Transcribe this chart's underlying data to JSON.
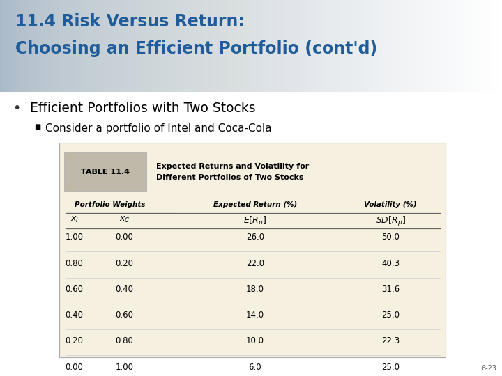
{
  "title_line1": "11.4 Risk Versus Return:",
  "title_line2": "Choosing an Efficient Portfolio (cont'd)",
  "title_color": "#1F5C99",
  "bullet1": "Efficient Portfolios with Two Stocks",
  "bullet2": "Consider a portfolio of Intel and Coca-Cola",
  "table_label": "TABLE 11.4",
  "table_title_line1": "Expected Returns and Volatility for",
  "table_title_line2": "Different Portfolios of Two Stocks",
  "col_header1": "Portfolio Weights",
  "col_header2": "Expected Return (%)",
  "col_header3": "Volatility (%)",
  "table_data": [
    [
      1.0,
      0.0,
      26.0,
      50.0
    ],
    [
      0.8,
      0.2,
      22.0,
      40.3
    ],
    [
      0.6,
      0.4,
      18.0,
      31.6
    ],
    [
      0.4,
      0.6,
      14.0,
      25.0
    ],
    [
      0.2,
      0.8,
      10.0,
      22.3
    ],
    [
      0.0,
      1.0,
      6.0,
      25.0
    ]
  ],
  "slide_number": "6-23",
  "header_bg_left": "#B8C8D8",
  "header_bg_right": "#D8DFE6",
  "table_bg": "#F5F0E0",
  "table_header_bg": "#C0B8A8",
  "table_border": "#AAAAAA"
}
